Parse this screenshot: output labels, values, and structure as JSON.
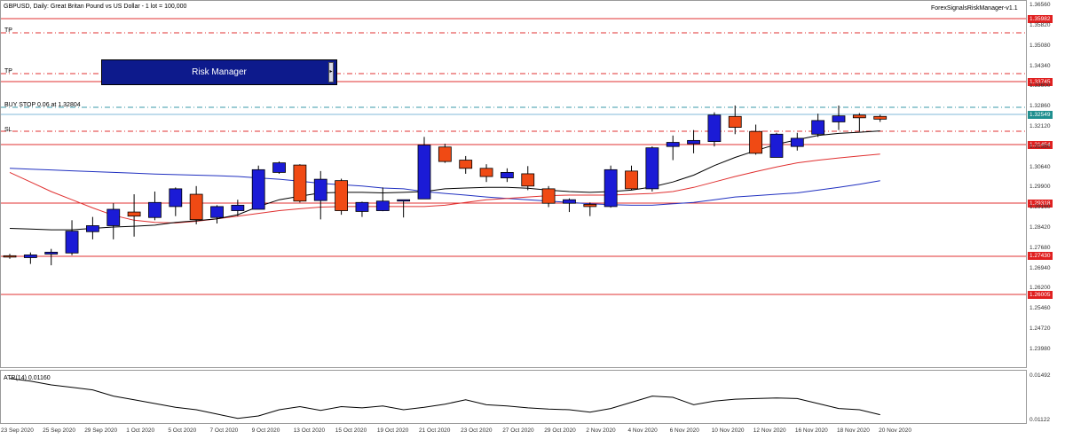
{
  "chart": {
    "title": "GBPUSD, Daily:  Great Britan Pound vs US Dollar - 1 lot = 100,000",
    "indicator_name": "ForexSignalsRiskManager-v1.1",
    "atr_label": "ATR(14) 0.01160"
  },
  "risk_manager": {
    "label": "Risk Manager",
    "handle": "▸"
  },
  "levels": {
    "tp1": "TP",
    "tp2": "TP",
    "buy_stop": "BUY STOP 0.06 at 1.32804",
    "sl": "SL"
  },
  "price_tags": {
    "l1": "1.35982",
    "l2": "1.33745",
    "current": "1.32549",
    "l3": "1.31454",
    "l4": "1.29318",
    "l5": "1.27430",
    "l6": "1.26005"
  },
  "y_axis": [
    "1.36560",
    "1.35820",
    "1.35080",
    "1.34340",
    "1.33600",
    "1.32860",
    "1.32120",
    "1.31380",
    "1.30640",
    "1.29900",
    "1.29160",
    "1.28420",
    "1.27680",
    "1.26940",
    "1.26200",
    "1.25460",
    "1.24720",
    "1.23980"
  ],
  "atr_axis": [
    "0.01492",
    "0.01122"
  ],
  "x_axis": [
    "23 Sep 2020",
    "25 Sep 2020",
    "29 Sep 2020",
    "1 Oct 2020",
    "5 Oct 2020",
    "7 Oct 2020",
    "9 Oct 2020",
    "13 Oct 2020",
    "15 Oct 2020",
    "19 Oct 2020",
    "21 Oct 2020",
    "23 Oct 2020",
    "27 Oct 2020",
    "29 Oct 2020",
    "2 Nov 2020",
    "4 Nov 2020",
    "6 Nov 2020",
    "10 Nov 2020",
    "12 Nov 2020",
    "16 Nov 2020",
    "18 Nov 2020",
    "20 Nov 2020"
  ],
  "colors": {
    "bull": "#1b1bd6",
    "bear": "#f04a14",
    "hline": "#e03030",
    "sma_fast": "#000000",
    "sma_mid": "#e03030",
    "sma_slow": "#2030c0",
    "tag_red": "#e02020",
    "tag_teal": "#1f8f8f"
  },
  "chart_data": {
    "type": "candlestick",
    "candles": [
      {
        "o": 1.274,
        "h": 1.2747,
        "l": 1.2729,
        "c": 1.2735
      },
      {
        "o": 1.2733,
        "h": 1.2752,
        "l": 1.271,
        "c": 1.2743
      },
      {
        "o": 1.2746,
        "h": 1.2765,
        "l": 1.2705,
        "c": 1.2753
      },
      {
        "o": 1.275,
        "h": 1.287,
        "l": 1.2742,
        "c": 1.283
      },
      {
        "o": 1.2828,
        "h": 1.2882,
        "l": 1.28,
        "c": 1.285
      },
      {
        "o": 1.285,
        "h": 1.2932,
        "l": 1.28,
        "c": 1.291
      },
      {
        "o": 1.29,
        "h": 1.2965,
        "l": 1.281,
        "c": 1.2885
      },
      {
        "o": 1.288,
        "h": 1.2975,
        "l": 1.287,
        "c": 1.2935
      },
      {
        "o": 1.292,
        "h": 1.299,
        "l": 1.2885,
        "c": 1.2985
      },
      {
        "o": 1.2965,
        "h": 1.2995,
        "l": 1.2855,
        "c": 1.2872
      },
      {
        "o": 1.288,
        "h": 1.2925,
        "l": 1.2858,
        "c": 1.292
      },
      {
        "o": 1.2905,
        "h": 1.2945,
        "l": 1.2885,
        "c": 1.2925
      },
      {
        "o": 1.291,
        "h": 1.307,
        "l": 1.291,
        "c": 1.3055
      },
      {
        "o": 1.3045,
        "h": 1.3085,
        "l": 1.304,
        "c": 1.308
      },
      {
        "o": 1.3072,
        "h": 1.3075,
        "l": 1.2935,
        "c": 1.294
      },
      {
        "o": 1.2942,
        "h": 1.305,
        "l": 1.2873,
        "c": 1.302
      },
      {
        "o": 1.3015,
        "h": 1.3022,
        "l": 1.289,
        "c": 1.2905
      },
      {
        "o": 1.2902,
        "h": 1.2938,
        "l": 1.2882,
        "c": 1.2935
      },
      {
        "o": 1.2905,
        "h": 1.299,
        "l": 1.2903,
        "c": 1.294
      },
      {
        "o": 1.294,
        "h": 1.2945,
        "l": 1.288,
        "c": 1.2945
      },
      {
        "o": 1.2948,
        "h": 1.3175,
        "l": 1.2948,
        "c": 1.3145
      },
      {
        "o": 1.3138,
        "h": 1.315,
        "l": 1.308,
        "c": 1.3085
      },
      {
        "o": 1.309,
        "h": 1.3105,
        "l": 1.304,
        "c": 1.306
      },
      {
        "o": 1.306,
        "h": 1.3075,
        "l": 1.301,
        "c": 1.303
      },
      {
        "o": 1.3025,
        "h": 1.306,
        "l": 1.301,
        "c": 1.3045
      },
      {
        "o": 1.304,
        "h": 1.3068,
        "l": 1.298,
        "c": 1.2995
      },
      {
        "o": 1.2985,
        "h": 1.2995,
        "l": 1.2918,
        "c": 1.2932
      },
      {
        "o": 1.2932,
        "h": 1.295,
        "l": 1.29,
        "c": 1.2945
      },
      {
        "o": 1.2928,
        "h": 1.2935,
        "l": 1.2885,
        "c": 1.292
      },
      {
        "o": 1.292,
        "h": 1.307,
        "l": 1.2916,
        "c": 1.3055
      },
      {
        "o": 1.305,
        "h": 1.307,
        "l": 1.298,
        "c": 1.2985
      },
      {
        "o": 1.2985,
        "h": 1.314,
        "l": 1.2975,
        "c": 1.3135
      },
      {
        "o": 1.314,
        "h": 1.318,
        "l": 1.309,
        "c": 1.3155
      },
      {
        "o": 1.315,
        "h": 1.32,
        "l": 1.3115,
        "c": 1.3162
      },
      {
        "o": 1.3158,
        "h": 1.3265,
        "l": 1.314,
        "c": 1.3255
      },
      {
        "o": 1.325,
        "h": 1.329,
        "l": 1.3185,
        "c": 1.321
      },
      {
        "o": 1.3195,
        "h": 1.322,
        "l": 1.311,
        "c": 1.3115
      },
      {
        "o": 1.31,
        "h": 1.319,
        "l": 1.31,
        "c": 1.3185
      },
      {
        "o": 1.314,
        "h": 1.319,
        "l": 1.3125,
        "c": 1.317
      },
      {
        "o": 1.3185,
        "h": 1.326,
        "l": 1.3175,
        "c": 1.3235
      },
      {
        "o": 1.323,
        "h": 1.329,
        "l": 1.32,
        "c": 1.3252
      },
      {
        "o": 1.3255,
        "h": 1.3262,
        "l": 1.3195,
        "c": 1.3245
      },
      {
        "o": 1.325,
        "h": 1.3256,
        "l": 1.323,
        "c": 1.324
      }
    ],
    "sma_fast": [
      1.284,
      1.2838,
      1.2835,
      1.2835,
      1.284,
      1.2845,
      1.2848,
      1.2852,
      1.2862,
      1.2868,
      1.2875,
      1.289,
      1.292,
      1.2945,
      1.2958,
      1.297,
      1.2972,
      1.2972,
      1.297,
      1.2972,
      1.2975,
      1.2985,
      1.2988,
      1.299,
      1.299,
      1.2987,
      1.298,
      1.2975,
      1.2972,
      1.2975,
      1.298,
      1.2992,
      1.301,
      1.3035,
      1.307,
      1.31,
      1.3125,
      1.3148,
      1.3165,
      1.318,
      1.3188,
      1.3192,
      1.3197
    ],
    "sma_mid": [
      1.3045,
      1.301,
      1.2975,
      1.2945,
      1.2915,
      1.2888,
      1.287,
      1.2862,
      1.286,
      1.2866,
      1.2875,
      1.2885,
      1.2895,
      1.2905,
      1.2912,
      1.2918,
      1.292,
      1.292,
      1.292,
      1.292,
      1.292,
      1.2925,
      1.2935,
      1.2945,
      1.295,
      1.2955,
      1.296,
      1.2962,
      1.2962,
      1.2962,
      1.2965,
      1.2968,
      1.2975,
      1.299,
      1.301,
      1.303,
      1.3048,
      1.3065,
      1.308,
      1.309,
      1.3098,
      1.3105,
      1.3112
    ],
    "sma_slow": [
      1.306,
      1.3057,
      1.3054,
      1.3051,
      1.3048,
      1.3045,
      1.3042,
      1.3039,
      1.3037,
      1.3035,
      1.3033,
      1.303,
      1.3025,
      1.302,
      1.3013,
      1.3005,
      1.3,
      1.2995,
      1.2988,
      1.2985,
      1.2975,
      1.2968,
      1.2962,
      1.2955,
      1.295,
      1.2945,
      1.294,
      1.2935,
      1.293,
      1.2927,
      1.2925,
      1.2925,
      1.293,
      1.2935,
      1.2945,
      1.2955,
      1.296,
      1.2965,
      1.297,
      1.298,
      1.299,
      1.3002,
      1.3015
    ],
    "atr": [
      0.01452,
      0.0143,
      0.014,
      0.0138,
      0.0136,
      0.0131,
      0.0128,
      0.0125,
      0.0122,
      0.012,
      0.01165,
      0.0113,
      0.0115,
      0.012,
      0.01225,
      0.01195,
      0.01225,
      0.01215,
      0.0123,
      0.012,
      0.0122,
      0.01245,
      0.0128,
      0.0124,
      0.0123,
      0.01215,
      0.01205,
      0.012,
      0.0118,
      0.0121,
      0.0126,
      0.0131,
      0.013,
      0.0124,
      0.0127,
      0.01285,
      0.0129,
      0.01295,
      0.0129,
      0.0125,
      0.0121,
      0.012,
      0.0116
    ],
    "y_range": [
      1.2345,
      1.366
    ],
    "atr_range": [
      0.011,
      0.015
    ]
  }
}
